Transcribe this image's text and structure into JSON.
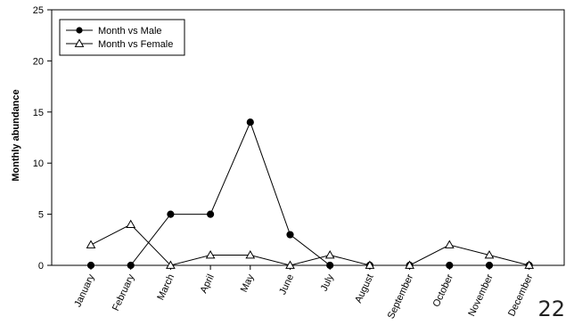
{
  "page_number": "22",
  "chart_data": {
    "type": "line",
    "categories": [
      "January",
      "February",
      "March",
      "April",
      "May",
      "June",
      "July",
      "August",
      "September",
      "October",
      "November",
      "December"
    ],
    "series": [
      {
        "name": "Month vs Male",
        "marker": "filled-circle",
        "color": "#000000",
        "values": [
          0,
          0,
          5,
          5,
          14,
          3,
          0,
          0,
          0,
          0,
          0,
          0
        ]
      },
      {
        "name": "Month vs Female",
        "marker": "open-triangle",
        "color": "#000000",
        "values": [
          2,
          4,
          0,
          1,
          1,
          0,
          1,
          0,
          0,
          2,
          1,
          0
        ]
      }
    ],
    "title": "",
    "xlabel": "",
    "ylabel": "Monthly abundance",
    "ylim": [
      0,
      25
    ],
    "yticks": [
      0,
      5,
      10,
      15,
      20,
      25
    ],
    "grid": false,
    "legend_position": "top-left"
  }
}
